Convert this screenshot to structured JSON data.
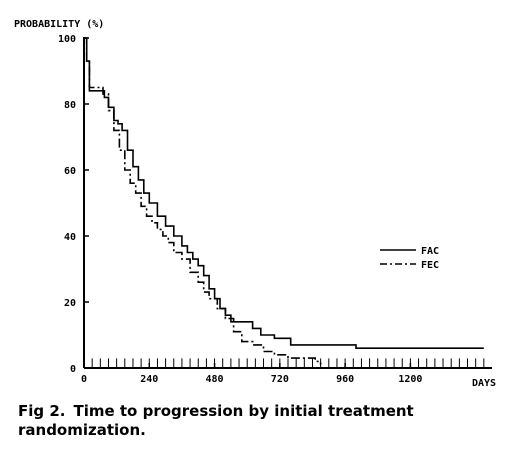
{
  "chart_data": {
    "type": "line",
    "ylabel": "PROBABILITY (%)",
    "xlabel": "DAYS",
    "xlim": [
      0,
      1500
    ],
    "ylim": [
      0,
      100
    ],
    "x_ticks": [
      0,
      240,
      480,
      720,
      960,
      1200
    ],
    "y_ticks": [
      0,
      20,
      40,
      60,
      80,
      100
    ],
    "grid": false,
    "legend": "right",
    "series": [
      {
        "name": "FAC",
        "style": "solid",
        "points": [
          [
            0,
            100
          ],
          [
            10,
            93
          ],
          [
            20,
            84
          ],
          [
            40,
            84
          ],
          [
            60,
            84
          ],
          [
            75,
            82
          ],
          [
            90,
            79
          ],
          [
            110,
            75
          ],
          [
            125,
            74
          ],
          [
            140,
            72
          ],
          [
            160,
            66
          ],
          [
            180,
            61
          ],
          [
            200,
            57
          ],
          [
            220,
            53
          ],
          [
            240,
            50
          ],
          [
            270,
            46
          ],
          [
            300,
            43
          ],
          [
            330,
            40
          ],
          [
            360,
            37
          ],
          [
            380,
            35
          ],
          [
            400,
            33
          ],
          [
            420,
            31
          ],
          [
            440,
            28
          ],
          [
            460,
            24
          ],
          [
            480,
            21
          ],
          [
            500,
            18
          ],
          [
            520,
            16
          ],
          [
            540,
            14
          ],
          [
            580,
            14
          ],
          [
            620,
            12
          ],
          [
            650,
            10
          ],
          [
            700,
            9
          ],
          [
            760,
            7
          ],
          [
            850,
            7
          ],
          [
            950,
            7
          ],
          [
            1000,
            6
          ],
          [
            1100,
            6
          ],
          [
            1200,
            6
          ],
          [
            1300,
            6
          ],
          [
            1470,
            6
          ]
        ]
      },
      {
        "name": "FEC",
        "style": "dash-dot",
        "points": [
          [
            0,
            100
          ],
          [
            10,
            93
          ],
          [
            20,
            85
          ],
          [
            50,
            85
          ],
          [
            70,
            83
          ],
          [
            90,
            78
          ],
          [
            110,
            72
          ],
          [
            130,
            66
          ],
          [
            150,
            60
          ],
          [
            170,
            56
          ],
          [
            190,
            53
          ],
          [
            210,
            49
          ],
          [
            230,
            46
          ],
          [
            250,
            44
          ],
          [
            270,
            42
          ],
          [
            290,
            40
          ],
          [
            310,
            38
          ],
          [
            330,
            35
          ],
          [
            360,
            33
          ],
          [
            390,
            29
          ],
          [
            420,
            26
          ],
          [
            440,
            23
          ],
          [
            460,
            21
          ],
          [
            490,
            18
          ],
          [
            520,
            15
          ],
          [
            550,
            11
          ],
          [
            580,
            8
          ],
          [
            620,
            7
          ],
          [
            660,
            5
          ],
          [
            700,
            4
          ],
          [
            750,
            3
          ],
          [
            800,
            3
          ],
          [
            850,
            2
          ],
          [
            870,
            1
          ]
        ]
      }
    ],
    "censor_marks_y": 2
  },
  "caption": {
    "label": "Fig 2.",
    "text": "Time to progression by initial treatment randomization."
  }
}
